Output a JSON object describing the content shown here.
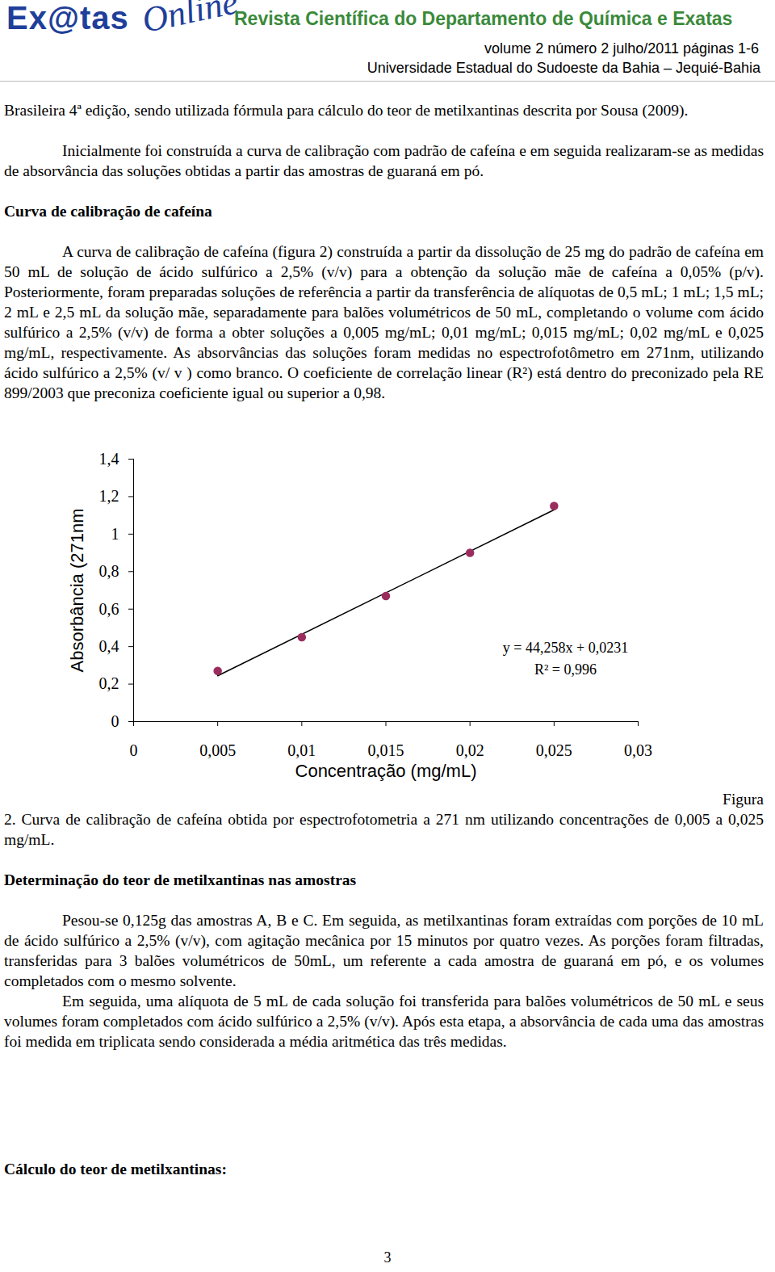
{
  "header": {
    "logo": [
      "Ex@tas",
      "Online"
    ],
    "journal": "Revista Científica do Departamento de Química e Exatas",
    "issue": "volume 2 número 2 julho/2011 páginas 1-6",
    "institution": "Universidade Estadual do Sudoeste da Bahia – Jequié-Bahia"
  },
  "body_before_figure": [
    {
      "kind": "paragraph",
      "text": "Brasileira 4ª edição, sendo utilizada fórmula para cálculo do teor de metilxantinas descrita por Sousa (2009)."
    },
    {
      "kind": "paragraph_indented",
      "text": "Inicialmente foi construída a curva de calibração com padrão de cafeína e em seguida realizaram-se as medidas de absorvância das soluções obtidas a partir das amostras de guaraná em pó."
    },
    {
      "kind": "heading",
      "text": "Curva de calibração de cafeína"
    },
    {
      "kind": "paragraph_indented",
      "text": "A curva de calibração de cafeína (figura 2) construída a partir da dissolução de 25 mg do padrão de cafeína em 50 mL de solução de ácido sulfúrico a 2,5% (v/v) para a obtenção da solução mãe de cafeína a 0,05% (p/v). Posteriormente, foram preparadas soluções de referência a partir da transferência de alíquotas de 0,5 mL; 1 mL; 1,5 mL; 2 mL e 2,5 mL da solução mãe, separadamente para balões volumétricos de 50 mL, completando o volume com ácido sulfúrico a 2,5% (v/v) de forma a obter soluções a 0,005 mg/mL; 0,01 mg/mL; 0,015 mg/mL; 0,02 mg/mL e 0,025 mg/mL, respectivamente. As absorvâncias das soluções foram medidas no espectrofotômetro em 271nm, utilizando ácido sulfúrico a 2,5% (v/ v ) como branco. O coeficiente de correlação linear (R²) está dentro do preconizado pela RE 899/2003 que preconiza coeficiente igual ou superior a 0,98."
    }
  ],
  "chart_data": {
    "type": "scatter",
    "x_label": "Concentração (mg/mL)",
    "y_label": "Absorbância (271nm",
    "x": [
      0.005,
      0.01,
      0.015,
      0.02,
      0.025
    ],
    "values": [
      0.27,
      0.45,
      0.67,
      0.9,
      1.15
    ],
    "color": "#9b2d5e",
    "marker": "circle",
    "trendline": {
      "x": [
        0.005,
        0.025
      ],
      "values": [
        0.2444,
        1.1296
      ],
      "color": "#000000",
      "line_style": "solid"
    },
    "annotations": [
      "y = 44,258x + 0,0231",
      "R² = 0,996"
    ],
    "xlim": [
      0,
      0.03
    ],
    "ylim": [
      0,
      1.4
    ],
    "xticks": [
      0,
      {
        "value": 0.005,
        "label": "0,005"
      },
      {
        "value": 0.01,
        "label": "0,01"
      },
      {
        "value": 0.015,
        "label": "0,015"
      },
      {
        "value": 0.02,
        "label": "0,02"
      },
      {
        "value": 0.025,
        "label": "0,025"
      },
      {
        "value": 0.03,
        "label": "0,03"
      }
    ],
    "yticks": [
      0,
      {
        "value": 0.2,
        "label": "0,2"
      },
      {
        "value": 0.4,
        "label": "0,4"
      },
      {
        "value": 0.6,
        "label": "0,6"
      },
      {
        "value": 0.8,
        "label": "0,8"
      },
      1,
      {
        "value": 1.2,
        "label": "1,2"
      },
      {
        "value": 1.4,
        "label": "1,4"
      }
    ],
    "grid": false
  },
  "caption": {
    "label": "Figura",
    "text": "2. Curva de calibração de cafeína obtida por espectrofotometria a 271 nm utilizando concentrações de 0,005 a 0,025 mg/mL."
  },
  "body_after_figure": [
    {
      "kind": "heading",
      "text": "Determinação do teor de metilxantinas nas amostras"
    },
    {
      "kind": "paragraph_indented",
      "text": "Pesou-se 0,125g das amostras A, B e C. Em seguida, as metilxantinas foram extraídas com porções de 10 mL de ácido sulfúrico a 2,5% (v/v), com agitação mecânica por 15 minutos por quatro vezes. As porções foram filtradas, transferidas para 3 balões volumétricos de 50mL, um referente a cada amostra de guaraná em pó, e os volumes completados com o mesmo solvente."
    },
    {
      "kind": "paragraph_indented",
      "text": "Em seguida, uma alíquota de 5 mL de cada solução foi transferida para balões volumétricos de 50 mL e seus volumes foram completados com ácido sulfúrico a 2,5% (v/v). Após esta etapa, a absorvância de cada uma das amostras foi medida em triplicata sendo considerada a média aritmética das três medidas."
    },
    {
      "kind": "heading",
      "text": "Cálculo do teor de metilxantinas:"
    }
  ],
  "page_number": "3"
}
